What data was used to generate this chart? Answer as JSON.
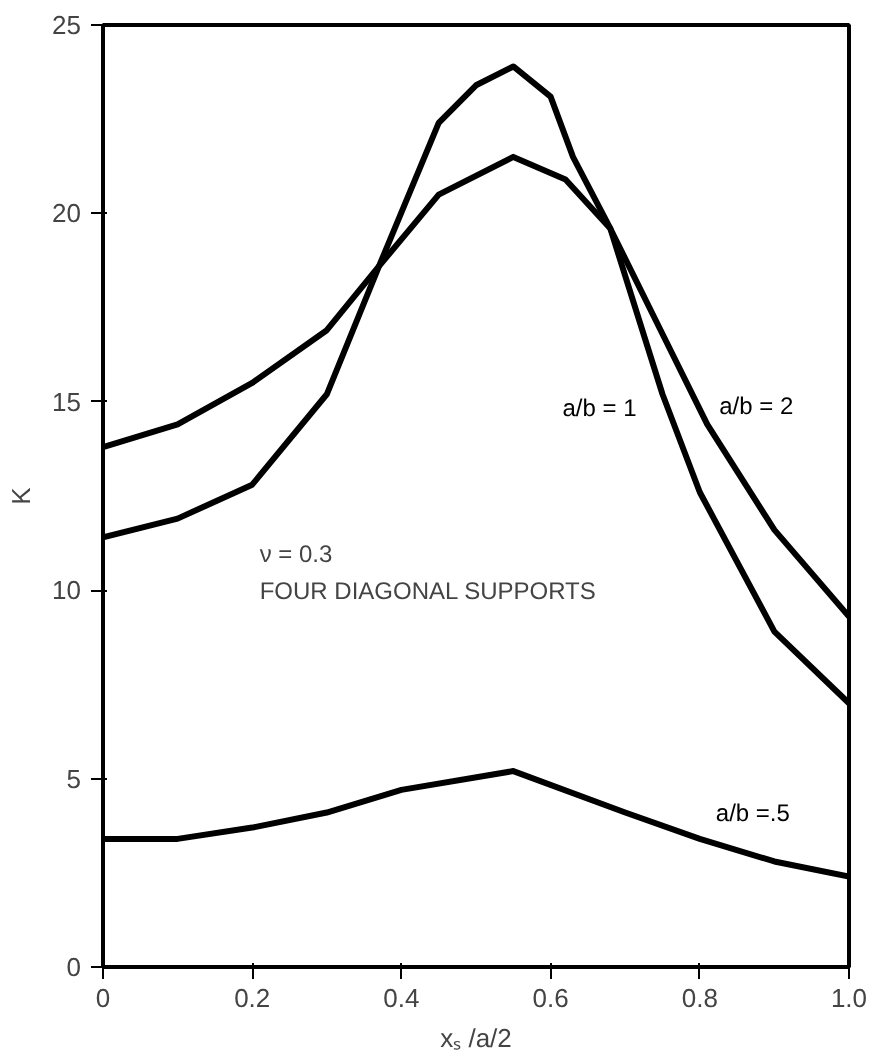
{
  "chart_data": {
    "type": "line",
    "xlabel": "xₛ /a/2",
    "ylabel": "K",
    "xlim": [
      0,
      1.0
    ],
    "ylim": [
      0,
      25
    ],
    "xticks": [
      0,
      {
        "value": 0.2,
        "label": "0.2"
      },
      {
        "value": 0.4,
        "label": "0.4"
      },
      {
        "value": 0.6,
        "label": "0.6"
      },
      {
        "value": 0.8,
        "label": "0.8"
      },
      {
        "value": 1.0,
        "label": "1.0"
      }
    ],
    "yticks": [
      0,
      5,
      10,
      15,
      20,
      25
    ],
    "grid": false,
    "marker": "none",
    "line_style": "solid",
    "series": [
      {
        "name": "a/b = 2",
        "color": "#000000",
        "x": [
          0,
          0.1,
          0.2,
          0.3,
          0.37,
          0.45,
          0.55,
          0.62,
          0.68,
          0.75,
          0.81,
          0.9,
          1.0
        ],
        "values": [
          13.8,
          14.4,
          15.5,
          16.9,
          18.6,
          20.5,
          21.5,
          20.9,
          19.6,
          16.8,
          14.4,
          11.6,
          9.3
        ]
      },
      {
        "name": "a/b = 1",
        "color": "#000000",
        "x": [
          0,
          0.1,
          0.2,
          0.3,
          0.37,
          0.45,
          0.5,
          0.55,
          0.6,
          0.63,
          0.68,
          0.75,
          0.8,
          0.9,
          1.0
        ],
        "values": [
          11.4,
          11.9,
          12.8,
          15.2,
          18.6,
          22.4,
          23.4,
          23.9,
          23.1,
          21.5,
          19.6,
          15.2,
          12.6,
          8.9,
          7.0
        ]
      },
      {
        "name": "a/b =.5",
        "color": "#000000",
        "x": [
          0,
          0.1,
          0.2,
          0.3,
          0.4,
          0.55,
          0.7,
          0.8,
          0.9,
          1.0
        ],
        "values": [
          3.4,
          3.4,
          3.7,
          4.1,
          4.7,
          5.2,
          4.1,
          3.4,
          2.8,
          2.4
        ]
      }
    ],
    "annotations": [
      "ν = 0.3",
      "FOUR DIAGONAL SUPPORTS"
    ]
  }
}
